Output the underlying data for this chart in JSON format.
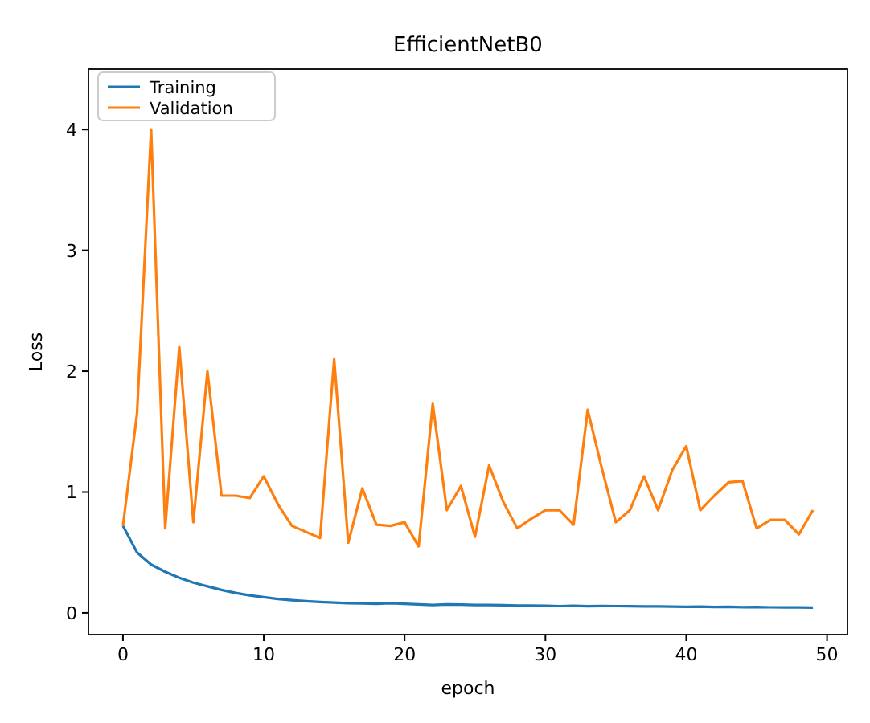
{
  "chart_data": {
    "type": "line",
    "title": "EfficientNetB0",
    "xlabel": "epoch",
    "ylabel": "Loss",
    "x": [
      0,
      1,
      2,
      3,
      4,
      5,
      6,
      7,
      8,
      9,
      10,
      11,
      12,
      13,
      14,
      15,
      16,
      17,
      18,
      19,
      20,
      21,
      22,
      23,
      24,
      25,
      26,
      27,
      28,
      29,
      30,
      31,
      32,
      33,
      34,
      35,
      36,
      37,
      38,
      39,
      40,
      41,
      42,
      43,
      44,
      45,
      46,
      47,
      48,
      49
    ],
    "series": [
      {
        "name": "Training",
        "color": "#1f77b4",
        "values": [
          0.72,
          0.5,
          0.4,
          0.34,
          0.29,
          0.25,
          0.22,
          0.19,
          0.165,
          0.145,
          0.13,
          0.115,
          0.105,
          0.097,
          0.09,
          0.085,
          0.08,
          0.078,
          0.075,
          0.08,
          0.075,
          0.07,
          0.065,
          0.07,
          0.068,
          0.065,
          0.065,
          0.063,
          0.06,
          0.06,
          0.058,
          0.056,
          0.058,
          0.055,
          0.057,
          0.056,
          0.055,
          0.054,
          0.053,
          0.052,
          0.05,
          0.052,
          0.048,
          0.05,
          0.047,
          0.048,
          0.046,
          0.045,
          0.045,
          0.043
        ]
      },
      {
        "name": "Validation",
        "color": "#ff7f0e",
        "values": [
          0.72,
          1.65,
          4.0,
          0.7,
          2.2,
          0.75,
          2.0,
          0.97,
          0.97,
          0.95,
          1.13,
          0.9,
          0.72,
          0.67,
          0.62,
          2.1,
          0.58,
          1.03,
          0.73,
          0.72,
          0.75,
          0.55,
          1.73,
          0.85,
          1.05,
          0.63,
          1.22,
          0.92,
          0.7,
          0.78,
          0.85,
          0.85,
          0.73,
          1.68,
          1.2,
          0.75,
          0.85,
          1.13,
          0.85,
          1.18,
          1.38,
          0.85,
          0.97,
          1.08,
          1.09,
          0.7,
          0.77,
          0.77,
          0.65,
          0.85
        ]
      }
    ],
    "xlim": [
      -2.45,
      51.45
    ],
    "ylim": [
      -0.18,
      4.5
    ],
    "xticks": [
      0,
      10,
      20,
      30,
      40,
      50
    ],
    "yticks": [
      0,
      1,
      2,
      3,
      4
    ],
    "legend": "top left",
    "grid": false,
    "marker": "none",
    "line_style": "solid"
  }
}
